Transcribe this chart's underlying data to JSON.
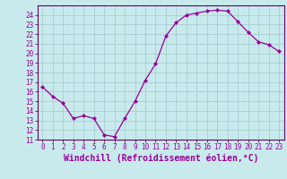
{
  "x": [
    0,
    1,
    2,
    3,
    4,
    5,
    6,
    7,
    8,
    9,
    10,
    11,
    12,
    13,
    14,
    15,
    16,
    17,
    18,
    19,
    20,
    21,
    22,
    23
  ],
  "y": [
    16.5,
    15.5,
    14.8,
    13.2,
    13.5,
    13.2,
    11.5,
    11.3,
    13.2,
    15.0,
    17.2,
    18.9,
    21.8,
    23.2,
    24.0,
    24.2,
    24.4,
    24.5,
    24.4,
    23.3,
    22.2,
    21.2,
    20.9,
    20.2
  ],
  "line_color": "#990099",
  "marker": "D",
  "markersize": 2,
  "linewidth": 0.9,
  "bg_color": "#c8eaec",
  "grid_color": "#a0c8cc",
  "xlabel": "Windchill (Refroidissement éolien,°C)",
  "ylim": [
    11,
    25
  ],
  "xlim": [
    -0.5,
    23.5
  ],
  "yticks": [
    11,
    12,
    13,
    14,
    15,
    16,
    17,
    18,
    19,
    20,
    21,
    22,
    23,
    24
  ],
  "xticks": [
    0,
    1,
    2,
    3,
    4,
    5,
    6,
    7,
    8,
    9,
    10,
    11,
    12,
    13,
    14,
    15,
    16,
    17,
    18,
    19,
    20,
    21,
    22,
    23
  ],
  "tick_fontsize": 5.5,
  "xlabel_fontsize": 7,
  "spine_color": "#660066"
}
